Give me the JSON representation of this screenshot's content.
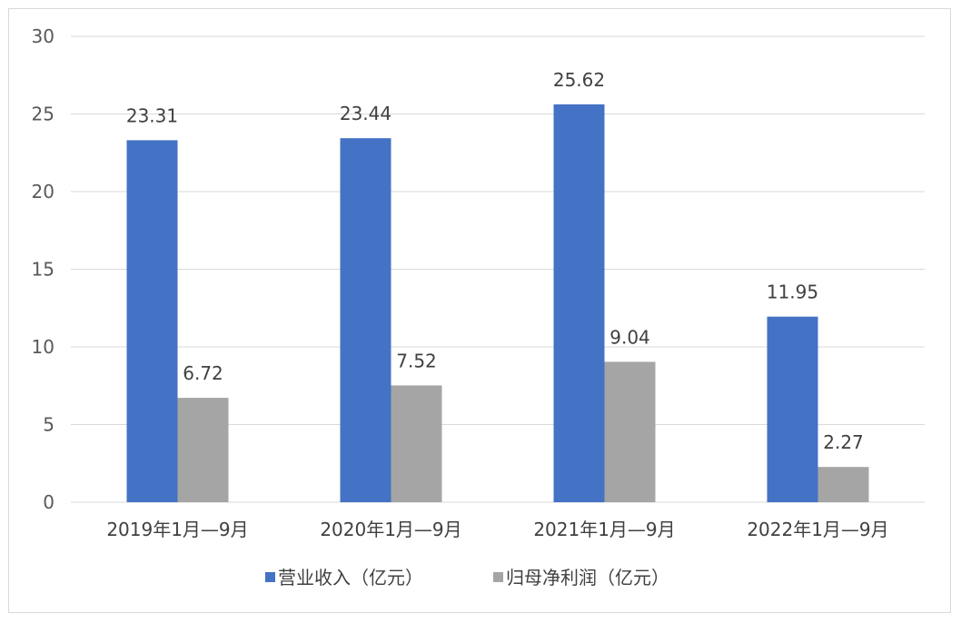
{
  "chart_data": {
    "type": "bar",
    "title": "",
    "xlabel": "",
    "ylabel": "",
    "ylim": [
      0,
      30
    ],
    "yticks": [
      0,
      5,
      10,
      15,
      20,
      25,
      30
    ],
    "grid": true,
    "legend_position": "bottom",
    "categories": [
      "2019年1月—9月",
      "2020年1月—9月",
      "2021年1月—9月",
      "2022年1月—9月"
    ],
    "series": [
      {
        "name": "营业收入（亿元）",
        "color": "#4472c4",
        "values": [
          23.31,
          23.44,
          25.62,
          11.95
        ],
        "labels": [
          "23.31",
          "23.44",
          "25.62",
          "11.95"
        ]
      },
      {
        "name": "归母净利润（亿元）",
        "color": "#a5a5a5",
        "values": [
          6.72,
          7.52,
          9.04,
          2.27
        ],
        "labels": [
          "6.72",
          "7.52",
          "9.04",
          "2.27"
        ]
      }
    ]
  }
}
